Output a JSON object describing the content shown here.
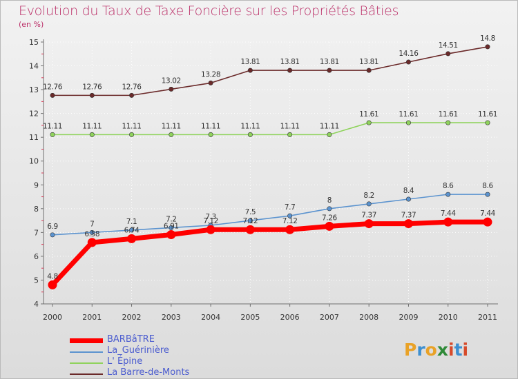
{
  "chart_data": {
    "type": "line",
    "title": "Evolution du Taux de Taxe Foncière sur les Propriétés Bâties",
    "ylabel": "(en %)",
    "xlabel": "",
    "categories": [
      "2000",
      "2001",
      "2002",
      "2003",
      "2004",
      "2005",
      "2006",
      "2007",
      "2008",
      "2009",
      "2010",
      "2011"
    ],
    "ylim": [
      4,
      15
    ],
    "yticks": [
      "4",
      "5",
      "6",
      "7",
      "8",
      "9",
      "10",
      "11",
      "12",
      "13",
      "14",
      "15"
    ],
    "series": [
      {
        "name": "BARBâTRE",
        "color": "#ff0000",
        "values": [
          4.8,
          6.58,
          6.74,
          6.91,
          7.12,
          7.12,
          7.12,
          7.26,
          7.37,
          7.37,
          7.44,
          7.44
        ],
        "labels": [
          "4.8",
          "6.58",
          "6.74",
          "6.91",
          "7.12",
          "7.12",
          "7.12",
          "7.26",
          "7.37",
          "7.37",
          "7.44",
          "7.44"
        ]
      },
      {
        "name": "La_Guérinière",
        "color": "#5b93cf",
        "values": [
          6.9,
          7,
          7.1,
          7.2,
          7.3,
          7.5,
          7.7,
          8,
          8.2,
          8.4,
          8.6,
          8.6
        ],
        "labels": [
          "6.9",
          "7",
          "7.1",
          "7.2",
          "7.3",
          "7.5",
          "7.7",
          "8",
          "8.2",
          "8.4",
          "8.6",
          "8.6"
        ]
      },
      {
        "name": "L' Épine",
        "color": "#8fd35c",
        "values": [
          11.11,
          11.11,
          11.11,
          11.11,
          11.11,
          11.11,
          11.11,
          11.11,
          11.61,
          11.61,
          11.61,
          11.61
        ],
        "labels": [
          "11.11",
          "11.11",
          "11.11",
          "11.11",
          "11.11",
          "11.11",
          "11.11",
          "11.11",
          "11.61",
          "11.61",
          "11.61",
          "11.61"
        ]
      },
      {
        "name": "La Barre-de-Monts",
        "color": "#6b2a2a",
        "values": [
          12.76,
          12.76,
          12.76,
          13.02,
          13.28,
          13.81,
          13.81,
          13.81,
          13.81,
          14.16,
          14.51,
          14.8
        ],
        "labels": [
          "12.76",
          "12.76",
          "12.76",
          "13.02",
          "13.28",
          "13.81",
          "13.81",
          "13.81",
          "13.81",
          "14.16",
          "14.51",
          "14.8"
        ]
      }
    ]
  },
  "logo": {
    "letters": [
      "P",
      "r",
      "o",
      "x",
      "i",
      "t",
      "i"
    ],
    "colors": [
      "#e9a227",
      "#3d8fd0",
      "#e9a227",
      "#2f8a38",
      "#d64a2a",
      "#3d8fd0",
      "#d64a2a"
    ]
  }
}
